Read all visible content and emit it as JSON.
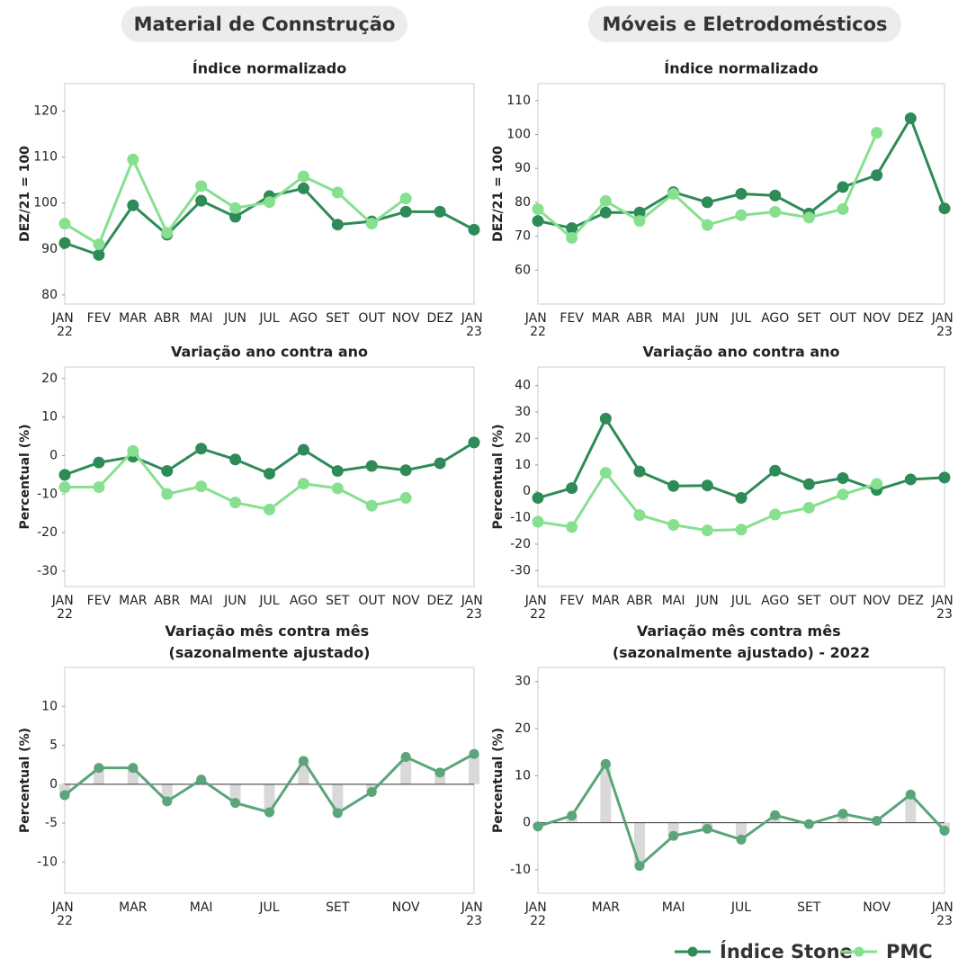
{
  "columns": [
    "Material de Connstrução",
    "Móveis e Eletrodomésticos"
  ],
  "chart_data": [
    {
      "type": "line",
      "title": "Índice normalizado",
      "ylabel": "DEZ/21 = 100",
      "categories": [
        "JAN\n22",
        "FEV",
        "MAR",
        "ABR",
        "MAI",
        "JUN",
        "JUL",
        "AGO",
        "SET",
        "OUT",
        "NOV",
        "DEZ",
        "JAN\n23"
      ],
      "ylim": [
        78,
        126
      ],
      "yticks": [
        80,
        90,
        100,
        110,
        120
      ],
      "series": [
        {
          "name": "Índice Stone",
          "color": "#2e8b57",
          "values": [
            91.3,
            88.7,
            99.5,
            93.1,
            100.5,
            97,
            101.5,
            103.2,
            95.3,
            96,
            98.1,
            98.1,
            94.2
          ]
        },
        {
          "name": "PMC",
          "color": "#86e08f",
          "values": [
            95.5,
            91,
            109.5,
            93.5,
            103.7,
            98.9,
            100.2,
            105.8,
            102.3,
            95.5,
            101,
            null,
            null
          ]
        }
      ]
    },
    {
      "type": "line",
      "title": "Índice normalizado",
      "ylabel": "DEZ/21 = 100",
      "categories": [
        "JAN\n22",
        "FEV",
        "MAR",
        "ABR",
        "MAI",
        "JUN",
        "JUL",
        "AGO",
        "SET",
        "OUT",
        "NOV",
        "DEZ",
        "JAN\n23"
      ],
      "ylim": [
        50,
        115
      ],
      "yticks": [
        60,
        70,
        80,
        90,
        100,
        110
      ],
      "series": [
        {
          "name": "Índice Stone",
          "color": "#2e8b57",
          "values": [
            74.5,
            72.4,
            77,
            77,
            83,
            80,
            82.5,
            82,
            76.7,
            84.5,
            88,
            104.8,
            78.2
          ]
        },
        {
          "name": "PMC",
          "color": "#86e08f",
          "values": [
            78,
            69.5,
            80.4,
            74.5,
            82.5,
            73.3,
            76.2,
            77.2,
            75.5,
            78,
            100.5,
            null,
            null
          ]
        }
      ]
    },
    {
      "type": "line",
      "title": "Variação ano contra ano",
      "ylabel": "Percentual (%)",
      "categories": [
        "JAN\n22",
        "FEV",
        "MAR",
        "ABR",
        "MAI",
        "JUN",
        "JUL",
        "AGO",
        "SET",
        "OUT",
        "NOV",
        "DEZ",
        "JAN\n23"
      ],
      "ylim": [
        -34,
        23
      ],
      "yticks": [
        -30,
        -20,
        -10,
        0,
        10,
        20
      ],
      "series": [
        {
          "name": "Índice Stone",
          "color": "#2e8b57",
          "values": [
            -5,
            -1.8,
            -0.3,
            -4,
            1.8,
            -1,
            -4.7,
            1.5,
            -4,
            -2.7,
            -3.8,
            -2,
            3.4
          ]
        },
        {
          "name": "PMC",
          "color": "#86e08f",
          "values": [
            -8.2,
            -8.2,
            1.2,
            -10,
            -8,
            -12.2,
            -14,
            -7.3,
            -8.5,
            -13,
            -11,
            null,
            null
          ]
        }
      ]
    },
    {
      "type": "line",
      "title": "Variação ano contra ano",
      "ylabel": "Percentual (%)",
      "categories": [
        "JAN\n22",
        "FEV",
        "MAR",
        "ABR",
        "MAI",
        "JUN",
        "JUL",
        "AGO",
        "SET",
        "OUT",
        "NOV",
        "DEZ",
        "JAN\n23"
      ],
      "ylim": [
        -36,
        47
      ],
      "yticks": [
        -30,
        -20,
        -10,
        0,
        10,
        20,
        30,
        40
      ],
      "series": [
        {
          "name": "Índice Stone",
          "color": "#2e8b57",
          "values": [
            -2.5,
            1.2,
            27.5,
            7.5,
            2,
            2.2,
            -2.5,
            7.8,
            2.7,
            5,
            0.5,
            4.5,
            5.2
          ]
        },
        {
          "name": "PMC",
          "color": "#86e08f",
          "values": [
            -11.5,
            -13.5,
            7,
            -9,
            -12.7,
            -14.8,
            -14.5,
            -8.8,
            -6.2,
            -1.2,
            2.8,
            null,
            null
          ]
        }
      ]
    },
    {
      "type": "combo",
      "title": "Variação mês contra mês\n(sazonalmente ajustado)",
      "ylabel": "Percentual (%)",
      "categories": [
        "JAN\n22",
        null,
        "MAR",
        null,
        "MAI",
        null,
        "JUL",
        null,
        "SET",
        null,
        "NOV",
        null,
        "JAN\n23"
      ],
      "ylim": [
        -14,
        15
      ],
      "yticks": [
        -10,
        -5,
        0,
        5,
        10
      ],
      "color": "#5aa57a",
      "bar_color": "#d9d9d9",
      "values": [
        -1.4,
        2.1,
        2.1,
        -2.2,
        0.6,
        -2.4,
        -3.6,
        3,
        -3.7,
        -1,
        3.5,
        1.5,
        3.9
      ]
    },
    {
      "type": "combo",
      "title": "Variação mês contra mês\n(sazonalmente ajustado) - 2022",
      "ylabel": "Percentual (%)",
      "categories": [
        "JAN\n22",
        null,
        "MAR",
        null,
        "MAI",
        null,
        "JUL",
        null,
        "SET",
        null,
        "NOV",
        null,
        "JAN\n23"
      ],
      "ylim": [
        -15,
        33
      ],
      "yticks": [
        -10,
        0,
        10,
        20,
        30
      ],
      "color": "#5aa57a",
      "bar_color": "#d9d9d9",
      "values": [
        -0.8,
        1.5,
        12.5,
        -9.2,
        -2.8,
        -1.3,
        -3.6,
        1.6,
        -0.3,
        1.9,
        0.4,
        6,
        -1.7
      ]
    }
  ]
}
